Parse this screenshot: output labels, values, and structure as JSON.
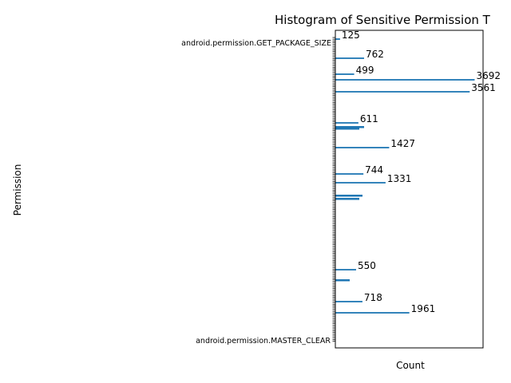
{
  "chart_data": {
    "type": "bar",
    "orientation": "horizontal",
    "title": "Histogram of Sensitive Permission T",
    "xlabel": "Count",
    "ylabel": "Permission",
    "bar_color": "#1f77b4",
    "grid": false,
    "visible_categories": [
      "android.permission.GET_PACKAGE_SIZE",
      "android.permission.MASTER_CLEAR"
    ],
    "labeled_values": [
      125,
      762,
      499,
      3692,
      3561,
      611,
      1427,
      744,
      1331,
      550,
      718,
      1961
    ]
  }
}
